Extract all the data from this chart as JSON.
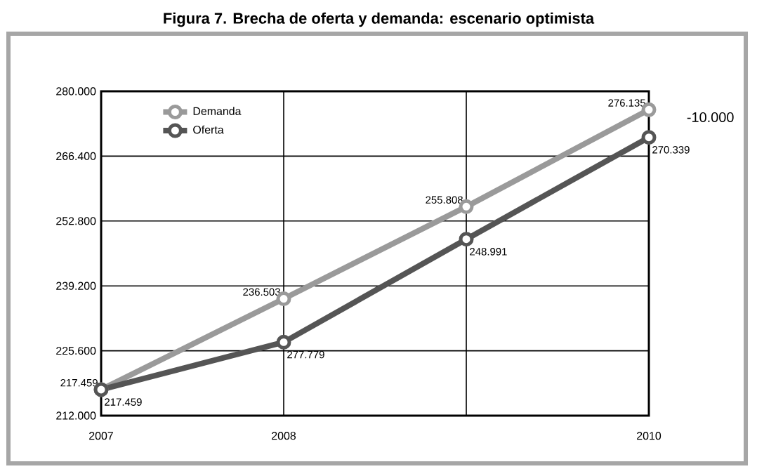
{
  "chart_data": {
    "type": "line",
    "title": "Figura 7. Brecha de oferta y demanda: escenario optimista",
    "categories": [
      "2007",
      "2008",
      null,
      "2010"
    ],
    "series": [
      {
        "name": "Demanda",
        "color": "#9a9a9a",
        "values": [
          217459,
          236503,
          255808,
          276135
        ],
        "value_labels": [
          "217.459",
          "236.503",
          "255.808",
          "276.135"
        ]
      },
      {
        "name": "Oferta",
        "color": "#555555",
        "values": [
          217459,
          227400,
          248991,
          270339
        ],
        "value_labels": [
          "217.459",
          null,
          "248.991",
          "270.339"
        ]
      }
    ],
    "ylim": [
      212000,
      280000
    ],
    "yticks": [
      {
        "value": 212000,
        "label": "212.000"
      },
      {
        "value": 225600,
        "label": "225.600"
      },
      {
        "value": 239200,
        "label": "239.200"
      },
      {
        "value": 252800,
        "label": "252.800"
      },
      {
        "value": 266400,
        "label": "266.400"
      },
      {
        "value": 280000,
        "label": "280.000"
      }
    ],
    "grid": true,
    "legend": "top left",
    "marker": "circle",
    "line_style": "solid",
    "annotations": [
      "-10.000",
      {
        "text": "277.779",
        "x": "2008",
        "y": 227400
      }
    ]
  }
}
